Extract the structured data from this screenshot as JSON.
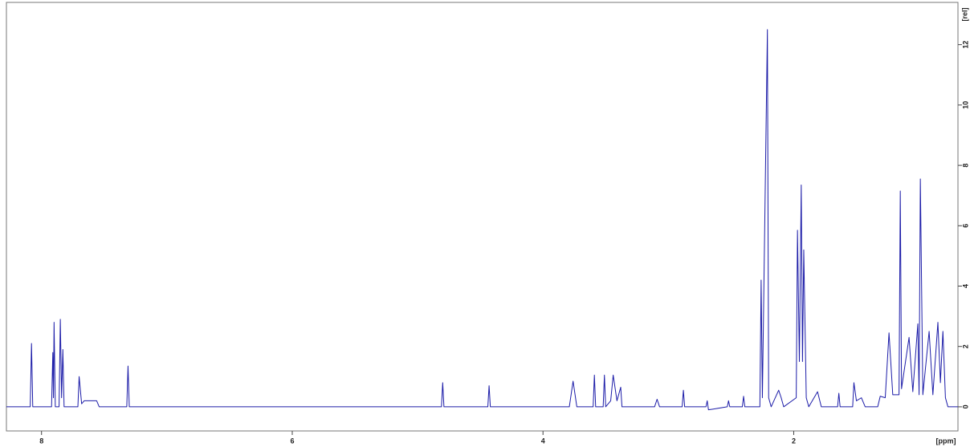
{
  "chart_data": {
    "type": "line",
    "xlabel": "[ppm]",
    "ylabel": "[rel]",
    "xlim": [
      8.28,
      0.69
    ],
    "ylim": [
      -0.8,
      13.4
    ],
    "xticks": [
      8,
      6,
      4,
      2
    ],
    "yticks": [
      0,
      2,
      4,
      6,
      8,
      10,
      12
    ],
    "x": [
      8.28,
      8.09,
      8.08,
      8.07,
      7.92,
      7.91,
      7.905,
      7.9,
      7.89,
      7.86,
      7.85,
      7.84,
      7.83,
      7.82,
      7.71,
      7.7,
      7.68,
      7.66,
      7.56,
      7.54,
      7.32,
      7.31,
      7.3,
      4.81,
      4.8,
      4.79,
      4.44,
      4.43,
      4.42,
      3.79,
      3.76,
      3.73,
      3.6,
      3.59,
      3.58,
      3.52,
      3.51,
      3.5,
      3.46,
      3.44,
      3.41,
      3.38,
      3.37,
      3.11,
      3.09,
      3.07,
      2.89,
      2.88,
      2.87,
      2.7,
      2.69,
      2.68,
      2.53,
      2.52,
      2.51,
      2.41,
      2.4,
      2.39,
      2.27,
      2.26,
      2.25,
      2.21,
      2.2,
      2.18,
      2.12,
      2.1,
      2.08,
      1.98,
      1.97,
      1.955,
      1.94,
      1.93,
      1.92,
      1.9,
      1.88,
      1.81,
      1.78,
      1.65,
      1.64,
      1.63,
      1.53,
      1.52,
      1.5,
      1.46,
      1.43,
      1.33,
      1.31,
      1.27,
      1.24,
      1.21,
      1.16,
      1.15,
      1.14,
      1.08,
      1.05,
      1.01,
      1.0,
      0.99,
      0.97,
      0.92,
      0.89,
      0.85,
      0.83,
      0.81,
      0.79,
      0.77,
      0.69
    ],
    "series": [
      {
        "color": "#1c1ca8",
        "values": [
          0,
          0,
          2.1,
          0,
          0,
          1.8,
          0.3,
          2.8,
          0,
          0,
          2.9,
          0.3,
          1.9,
          0,
          0,
          1.0,
          0.1,
          0.2,
          0.2,
          0,
          0,
          1.35,
          0,
          0,
          0.8,
          0,
          0,
          0.7,
          0,
          0,
          0.85,
          0,
          0,
          1.05,
          0,
          0,
          1.05,
          0,
          0.2,
          1.05,
          0.2,
          0.65,
          0,
          0,
          0.25,
          0,
          0,
          0.55,
          0,
          0,
          0.2,
          -0.1,
          0,
          0.2,
          0,
          0,
          0.35,
          0,
          0,
          4.2,
          0.3,
          12.5,
          0.3,
          0,
          0.55,
          0.3,
          0,
          0.3,
          5.85,
          1.5,
          7.35,
          1.5,
          5.2,
          0.3,
          0,
          0.5,
          0,
          0,
          0.45,
          0,
          0,
          0.8,
          0.2,
          0.3,
          0,
          0,
          0.35,
          0.3,
          2.45,
          0.4,
          0.4,
          7.15,
          0.6,
          2.3,
          0.5,
          2.75,
          0.4,
          7.55,
          0.4,
          2.5,
          0.4,
          2.8,
          0.8,
          2.5,
          0.3,
          0,
          0
        ]
      }
    ]
  }
}
